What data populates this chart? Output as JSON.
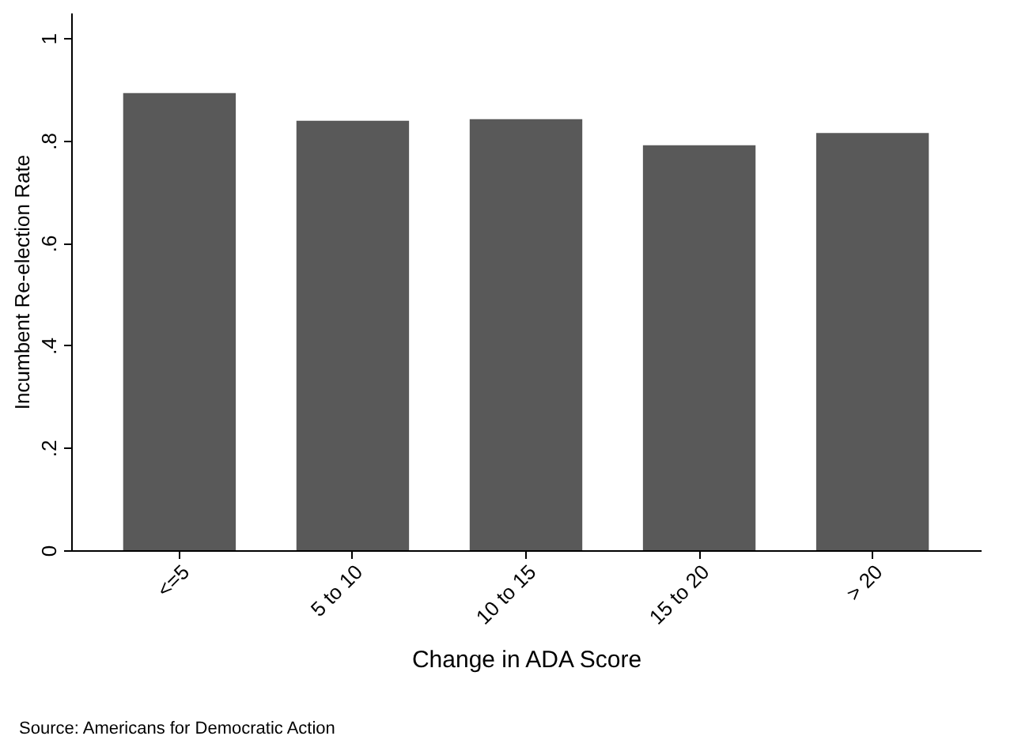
{
  "chart_data": {
    "type": "bar",
    "categories": [
      "<=5",
      "5 to 10",
      "10 to 15",
      "15 to 20",
      "> 20"
    ],
    "values": [
      0.893,
      0.839,
      0.842,
      0.791,
      0.815
    ],
    "color": "#595959",
    "xlabel": "Change in ADA Score",
    "ylabel": "Incumbent Re-election Rate",
    "ylim": [
      0,
      1.05
    ],
    "yticks": [
      {
        "value": 0,
        "label": "0"
      },
      {
        "value": 0.2,
        "label": ".2"
      },
      {
        "value": 0.4,
        "label": ".4"
      },
      {
        "value": 0.6,
        "label": ".6"
      },
      {
        "value": 0.8,
        "label": ".8"
      },
      {
        "value": 1,
        "label": "1"
      }
    ],
    "grid": false,
    "annotations": [
      "Source:  Americans for Democratic Action"
    ]
  }
}
